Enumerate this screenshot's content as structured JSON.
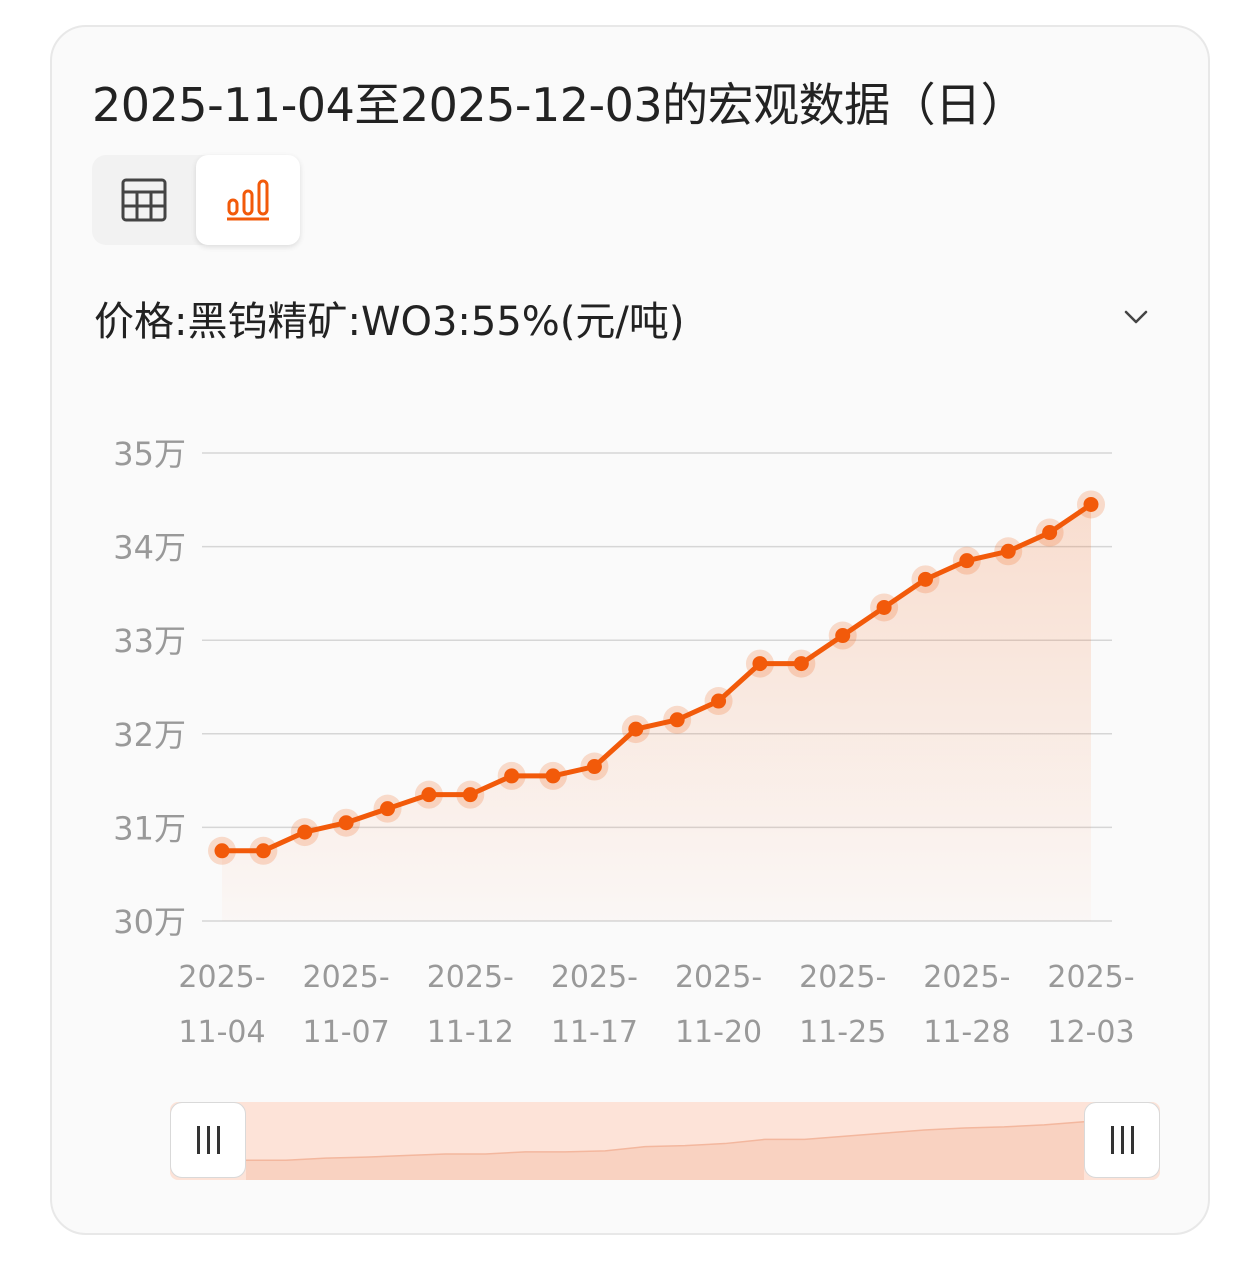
{
  "title": "2025-11-04至2025-12-03的宏观数据（日）",
  "view_toggle": {
    "table_icon": "table-icon",
    "chart_icon": "bar-chart-icon",
    "active": "chart",
    "accent_color": "#f25a0a"
  },
  "series_selector": {
    "label": "价格:黑钨精矿:WO3:55%(元/吨)",
    "icon": "chevron-down-icon"
  },
  "chart_data": {
    "type": "area",
    "title": "",
    "xlabel": "",
    "ylabel": "",
    "ylim": [
      300000,
      350000
    ],
    "y_ticks": [
      300000,
      310000,
      320000,
      330000,
      340000,
      350000
    ],
    "y_tick_labels": [
      "30万",
      "31万",
      "32万",
      "33万",
      "34万",
      "35万"
    ],
    "grid": true,
    "color": "#f25a0a",
    "x": [
      "2025-11-04",
      "2025-11-05",
      "2025-11-06",
      "2025-11-07",
      "2025-11-10",
      "2025-11-11",
      "2025-11-12",
      "2025-11-13",
      "2025-11-14",
      "2025-11-17",
      "2025-11-18",
      "2025-11-19",
      "2025-11-20",
      "2025-11-21",
      "2025-11-24",
      "2025-11-25",
      "2025-11-26",
      "2025-11-27",
      "2025-11-28",
      "2025-12-01",
      "2025-12-02",
      "2025-12-03"
    ],
    "x_tick_labels": [
      {
        "index": 0,
        "line1": "2025-",
        "line2": "11-04"
      },
      {
        "index": 3,
        "line1": "2025-",
        "line2": "11-07"
      },
      {
        "index": 6,
        "line1": "2025-",
        "line2": "11-12"
      },
      {
        "index": 9,
        "line1": "2025-",
        "line2": "11-17"
      },
      {
        "index": 12,
        "line1": "2025-",
        "line2": "11-20"
      },
      {
        "index": 15,
        "line1": "2025-",
        "line2": "11-25"
      },
      {
        "index": 18,
        "line1": "2025-",
        "line2": "11-28"
      },
      {
        "index": 21,
        "line1": "2025-",
        "line2": "12-03"
      }
    ],
    "series": [
      {
        "values": [
          307500,
          307500,
          309500,
          310500,
          312000,
          313500,
          313500,
          315500,
          315500,
          316500,
          320500,
          321500,
          323500,
          327500,
          327500,
          330500,
          333500,
          336500,
          338500,
          339500,
          341500,
          344500
        ]
      }
    ]
  },
  "range_slider": {
    "start": 0,
    "end": 1,
    "left_handle_icon": "grip-icon",
    "right_handle_icon": "grip-icon"
  }
}
